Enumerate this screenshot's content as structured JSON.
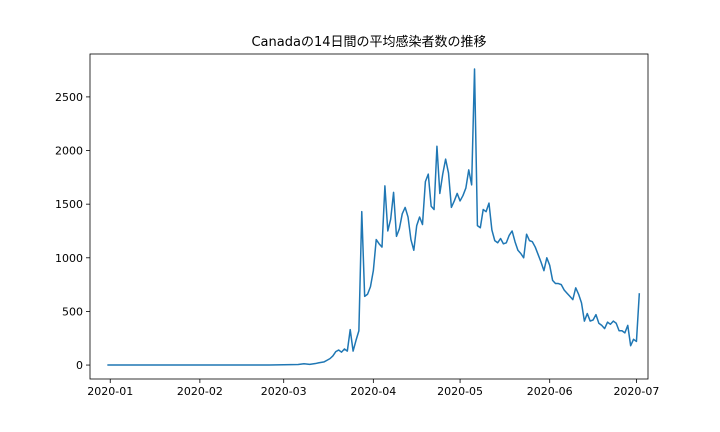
{
  "chart_data": {
    "type": "line",
    "title": "Canadaの14日間の平均感染者数の推移",
    "xlabel": "",
    "ylabel": "",
    "xlim": [
      "2019-12-25",
      "2020-07-05"
    ],
    "ylim": [
      -130,
      2900
    ],
    "x_ticks": [
      "2020-01",
      "2020-02",
      "2020-03",
      "2020-04",
      "2020-05",
      "2020-06",
      "2020-07"
    ],
    "y_ticks": [
      0,
      500,
      1000,
      1500,
      2000,
      2500
    ],
    "grid": false,
    "legend": "none",
    "series": [
      {
        "color": "#1f77b4",
        "points": [
          [
            "2019-12-31",
            0
          ],
          [
            "2020-01-10",
            0
          ],
          [
            "2020-01-25",
            0
          ],
          [
            "2020-02-10",
            1
          ],
          [
            "2020-02-25",
            1
          ],
          [
            "2020-03-01",
            3
          ],
          [
            "2020-03-06",
            5
          ],
          [
            "2020-03-08",
            12
          ],
          [
            "2020-03-10",
            6
          ],
          [
            "2020-03-12",
            14
          ],
          [
            "2020-03-13",
            20
          ],
          [
            "2020-03-15",
            30
          ],
          [
            "2020-03-16",
            45
          ],
          [
            "2020-03-17",
            60
          ],
          [
            "2020-03-18",
            85
          ],
          [
            "2020-03-19",
            125
          ],
          [
            "2020-03-20",
            140
          ],
          [
            "2020-03-21",
            120
          ],
          [
            "2020-03-22",
            150
          ],
          [
            "2020-03-23",
            130
          ],
          [
            "2020-03-24",
            330
          ],
          [
            "2020-03-25",
            130
          ],
          [
            "2020-03-26",
            230
          ],
          [
            "2020-03-27",
            320
          ],
          [
            "2020-03-28",
            1430
          ],
          [
            "2020-03-29",
            640
          ],
          [
            "2020-03-30",
            660
          ],
          [
            "2020-03-31",
            730
          ],
          [
            "2020-04-01",
            880
          ],
          [
            "2020-04-02",
            1170
          ],
          [
            "2020-04-03",
            1130
          ],
          [
            "2020-04-04",
            1100
          ],
          [
            "2020-04-05",
            1670
          ],
          [
            "2020-04-06",
            1250
          ],
          [
            "2020-04-07",
            1360
          ],
          [
            "2020-04-08",
            1610
          ],
          [
            "2020-04-09",
            1200
          ],
          [
            "2020-04-10",
            1270
          ],
          [
            "2020-04-11",
            1410
          ],
          [
            "2020-04-12",
            1470
          ],
          [
            "2020-04-13",
            1380
          ],
          [
            "2020-04-14",
            1170
          ],
          [
            "2020-04-15",
            1070
          ],
          [
            "2020-04-16",
            1300
          ],
          [
            "2020-04-17",
            1380
          ],
          [
            "2020-04-18",
            1310
          ],
          [
            "2020-04-19",
            1710
          ],
          [
            "2020-04-20",
            1780
          ],
          [
            "2020-04-21",
            1480
          ],
          [
            "2020-04-22",
            1450
          ],
          [
            "2020-04-23",
            2040
          ],
          [
            "2020-04-24",
            1600
          ],
          [
            "2020-04-25",
            1780
          ],
          [
            "2020-04-26",
            1920
          ],
          [
            "2020-04-27",
            1790
          ],
          [
            "2020-04-28",
            1470
          ],
          [
            "2020-04-29",
            1530
          ],
          [
            "2020-04-30",
            1600
          ],
          [
            "2020-05-01",
            1530
          ],
          [
            "2020-05-02",
            1580
          ],
          [
            "2020-05-03",
            1650
          ],
          [
            "2020-05-04",
            1820
          ],
          [
            "2020-05-05",
            1680
          ],
          [
            "2020-05-06",
            2760
          ],
          [
            "2020-05-07",
            1300
          ],
          [
            "2020-05-08",
            1280
          ],
          [
            "2020-05-09",
            1450
          ],
          [
            "2020-05-10",
            1430
          ],
          [
            "2020-05-11",
            1510
          ],
          [
            "2020-05-12",
            1260
          ],
          [
            "2020-05-13",
            1160
          ],
          [
            "2020-05-14",
            1140
          ],
          [
            "2020-05-15",
            1180
          ],
          [
            "2020-05-16",
            1130
          ],
          [
            "2020-05-17",
            1140
          ],
          [
            "2020-05-18",
            1210
          ],
          [
            "2020-05-19",
            1250
          ],
          [
            "2020-05-20",
            1150
          ],
          [
            "2020-05-21",
            1070
          ],
          [
            "2020-05-22",
            1040
          ],
          [
            "2020-05-23",
            1000
          ],
          [
            "2020-05-24",
            1220
          ],
          [
            "2020-05-25",
            1160
          ],
          [
            "2020-05-26",
            1150
          ],
          [
            "2020-05-27",
            1100
          ],
          [
            "2020-05-28",
            1030
          ],
          [
            "2020-05-29",
            960
          ],
          [
            "2020-05-30",
            880
          ],
          [
            "2020-05-31",
            1000
          ],
          [
            "2020-06-01",
            930
          ],
          [
            "2020-06-02",
            790
          ],
          [
            "2020-06-03",
            760
          ],
          [
            "2020-06-04",
            760
          ],
          [
            "2020-06-05",
            750
          ],
          [
            "2020-06-06",
            700
          ],
          [
            "2020-06-07",
            670
          ],
          [
            "2020-06-08",
            640
          ],
          [
            "2020-06-09",
            610
          ],
          [
            "2020-06-10",
            720
          ],
          [
            "2020-06-11",
            660
          ],
          [
            "2020-06-12",
            580
          ],
          [
            "2020-06-13",
            410
          ],
          [
            "2020-06-14",
            480
          ],
          [
            "2020-06-15",
            410
          ],
          [
            "2020-06-16",
            420
          ],
          [
            "2020-06-17",
            470
          ],
          [
            "2020-06-18",
            390
          ],
          [
            "2020-06-19",
            370
          ],
          [
            "2020-06-20",
            340
          ],
          [
            "2020-06-21",
            400
          ],
          [
            "2020-06-22",
            380
          ],
          [
            "2020-06-23",
            410
          ],
          [
            "2020-06-24",
            390
          ],
          [
            "2020-06-25",
            320
          ],
          [
            "2020-06-26",
            320
          ],
          [
            "2020-06-27",
            300
          ],
          [
            "2020-06-28",
            370
          ],
          [
            "2020-06-29",
            180
          ],
          [
            "2020-06-30",
            240
          ],
          [
            "2020-07-01",
            220
          ],
          [
            "2020-07-02",
            670
          ]
        ]
      }
    ]
  }
}
